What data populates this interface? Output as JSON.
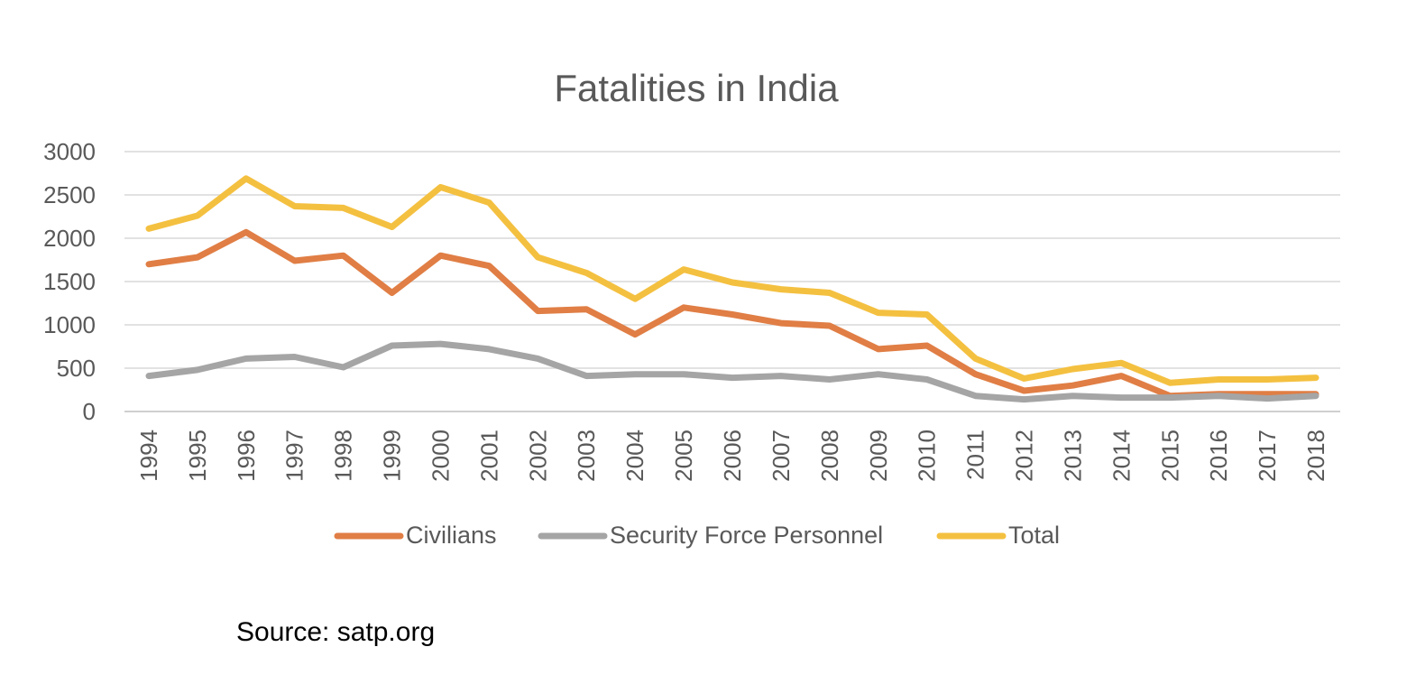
{
  "chart_data": {
    "type": "line",
    "title": "Fatalities in India",
    "xlabel": "",
    "ylabel": "",
    "ylim": [
      0,
      3000
    ],
    "yticks": [
      0,
      500,
      1000,
      1500,
      2000,
      2500,
      3000
    ],
    "grid": true,
    "legend": "bottom",
    "categories": [
      "1994",
      "1995",
      "1996",
      "1997",
      "1998",
      "1999",
      "2000",
      "2001",
      "2002",
      "2003",
      "2004",
      "2005",
      "2006",
      "2007",
      "2008",
      "2009",
      "2010",
      "2011",
      "2012",
      "2013",
      "2014",
      "2015",
      "2016",
      "2017",
      "2018"
    ],
    "series": [
      {
        "name": "Civilians",
        "color": "#E07E45",
        "values": [
          1700,
          1780,
          2070,
          1740,
          1800,
          1370,
          1800,
          1680,
          1160,
          1180,
          890,
          1200,
          1120,
          1020,
          990,
          720,
          760,
          430,
          240,
          300,
          410,
          180,
          200,
          200,
          200
        ]
      },
      {
        "name": "Security Force Personnel",
        "color": "#A5A5A5",
        "values": [
          410,
          480,
          610,
          630,
          510,
          760,
          780,
          720,
          610,
          410,
          430,
          430,
          390,
          410,
          370,
          430,
          370,
          180,
          140,
          180,
          160,
          160,
          180,
          150,
          180
        ]
      },
      {
        "name": "Total",
        "color": "#F4C040",
        "values": [
          2110,
          2260,
          2690,
          2370,
          2350,
          2130,
          2590,
          2410,
          1780,
          1600,
          1300,
          1640,
          1490,
          1410,
          1370,
          1140,
          1120,
          610,
          380,
          490,
          560,
          330,
          370,
          370,
          390
        ]
      }
    ]
  },
  "source_note": "Source: satp.org"
}
